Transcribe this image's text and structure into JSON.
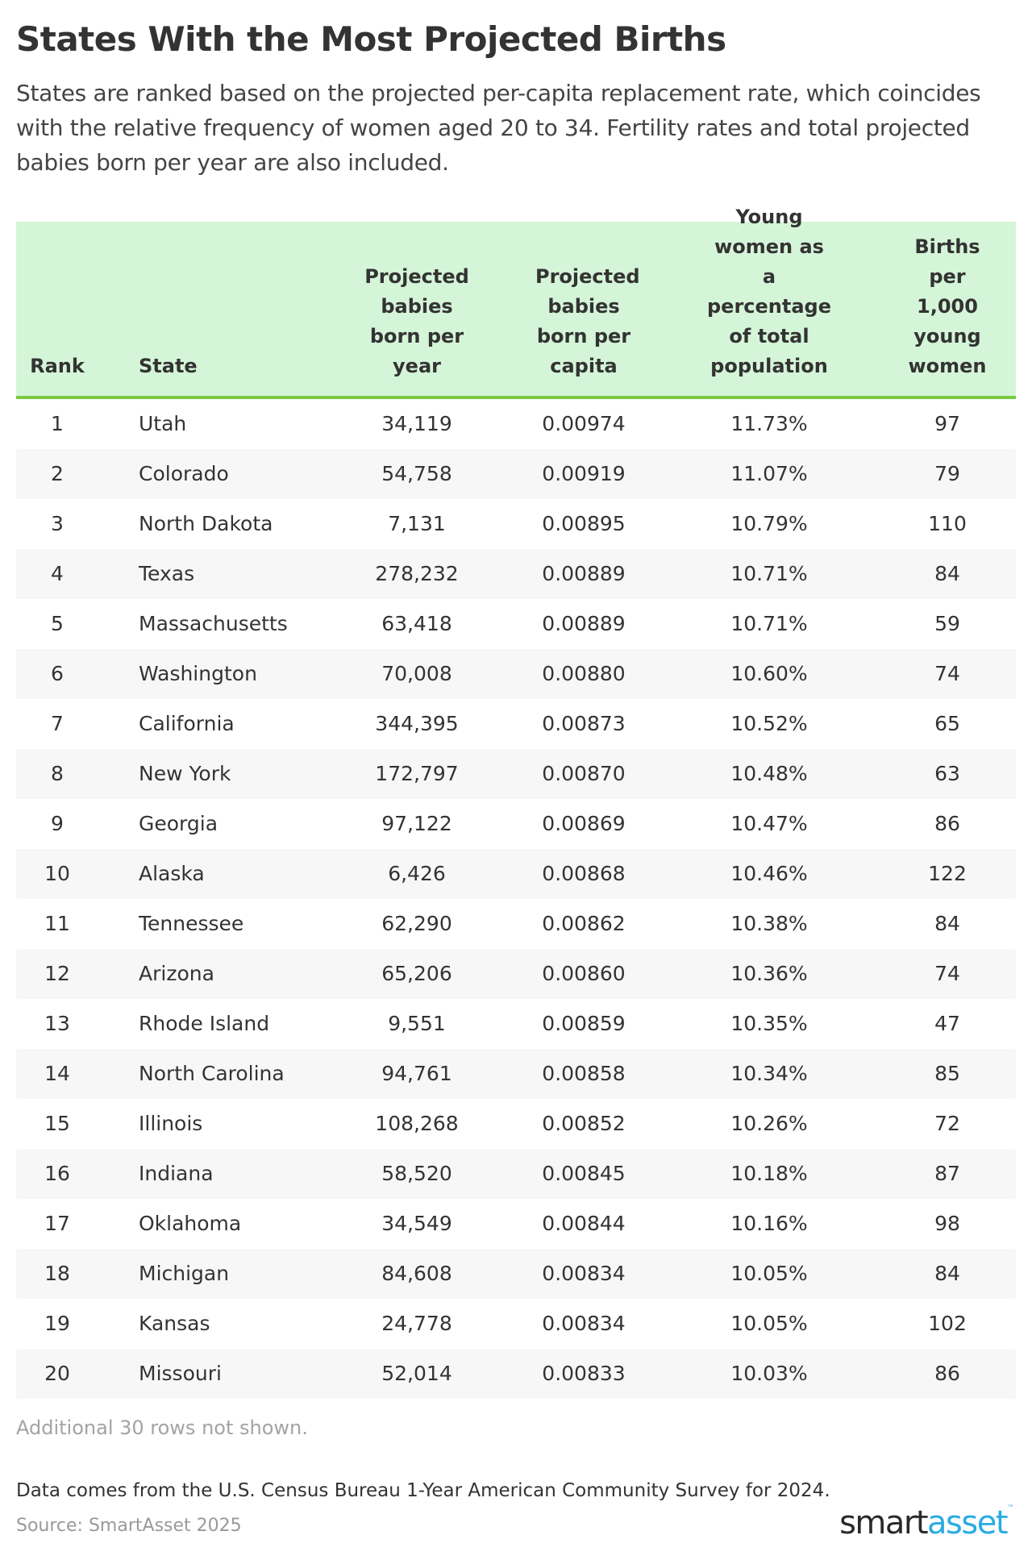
{
  "title": "States With the Most Projected Births",
  "subtitle": "States are ranked based on the projected per-capita replacement rate, which coincides with the relative frequency of women aged 20 to 34. Fertility rates and total projected babies born per year are also included.",
  "colors": {
    "header_bg": "#d5f5d8",
    "header_border": "#7ac943",
    "stripe": "#f7f7f7",
    "logo_dark": "#2a2a2a",
    "logo_blue": "#29abe2"
  },
  "chart_data": {
    "type": "table",
    "columns": [
      "Rank",
      "State",
      "Projected babies born per year",
      "Projected babies born per capita",
      "Young women as a percentage of total population",
      "Births per 1,000 young women"
    ],
    "rows": [
      [
        "1",
        "Utah",
        "34,119",
        "0.00974",
        "11.73%",
        "97"
      ],
      [
        "2",
        "Colorado",
        "54,758",
        "0.00919",
        "11.07%",
        "79"
      ],
      [
        "3",
        "North Dakota",
        "7,131",
        "0.00895",
        "10.79%",
        "110"
      ],
      [
        "4",
        "Texas",
        "278,232",
        "0.00889",
        "10.71%",
        "84"
      ],
      [
        "5",
        "Massachusetts",
        "63,418",
        "0.00889",
        "10.71%",
        "59"
      ],
      [
        "6",
        "Washington",
        "70,008",
        "0.00880",
        "10.60%",
        "74"
      ],
      [
        "7",
        "California",
        "344,395",
        "0.00873",
        "10.52%",
        "65"
      ],
      [
        "8",
        "New York",
        "172,797",
        "0.00870",
        "10.48%",
        "63"
      ],
      [
        "9",
        "Georgia",
        "97,122",
        "0.00869",
        "10.47%",
        "86"
      ],
      [
        "10",
        "Alaska",
        "6,426",
        "0.00868",
        "10.46%",
        "122"
      ],
      [
        "11",
        "Tennessee",
        "62,290",
        "0.00862",
        "10.38%",
        "84"
      ],
      [
        "12",
        "Arizona",
        "65,206",
        "0.00860",
        "10.36%",
        "74"
      ],
      [
        "13",
        "Rhode Island",
        "9,551",
        "0.00859",
        "10.35%",
        "47"
      ],
      [
        "14",
        "North Carolina",
        "94,761",
        "0.00858",
        "10.34%",
        "85"
      ],
      [
        "15",
        "Illinois",
        "108,268",
        "0.00852",
        "10.26%",
        "72"
      ],
      [
        "16",
        "Indiana",
        "58,520",
        "0.00845",
        "10.18%",
        "87"
      ],
      [
        "17",
        "Oklahoma",
        "34,549",
        "0.00844",
        "10.16%",
        "98"
      ],
      [
        "18",
        "Michigan",
        "84,608",
        "0.00834",
        "10.05%",
        "84"
      ],
      [
        "19",
        "Kansas",
        "24,778",
        "0.00834",
        "10.05%",
        "102"
      ],
      [
        "20",
        "Missouri",
        "52,014",
        "0.00833",
        "10.03%",
        "86"
      ]
    ]
  },
  "footer": {
    "rows_note": "Additional 30 rows not shown.",
    "data_note": "Data comes from the U.S. Census Bureau 1-Year American Community Survey for 2024.",
    "source": "Source: SmartAsset 2025",
    "logo": {
      "part1": "smart",
      "part2": "asset",
      "tm": "™"
    }
  }
}
